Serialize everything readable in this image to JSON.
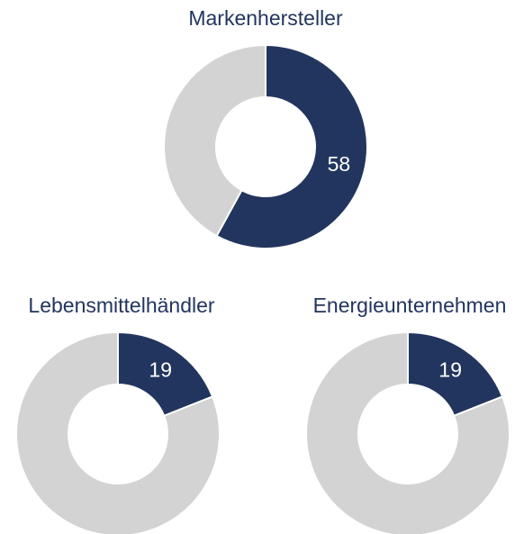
{
  "chart_data": [
    {
      "type": "pie",
      "title": "Markenhersteller",
      "categories": [
        "Markenhersteller",
        null
      ],
      "values": [
        58,
        42
      ],
      "value_labels": [
        "58",
        null
      ],
      "colors": [
        "#22355e",
        "#d3d3d3"
      ],
      "donut": true
    },
    {
      "type": "pie",
      "title": "Lebensmittelhändler",
      "categories": [
        "Lebensmittelhändler",
        null
      ],
      "values": [
        19,
        81
      ],
      "value_labels": [
        "19",
        null
      ],
      "colors": [
        "#22355e",
        "#d3d3d3"
      ],
      "donut": true
    },
    {
      "type": "pie",
      "title": "Energieunternehmen",
      "categories": [
        "Energieunternehmen",
        null
      ],
      "values": [
        19,
        81
      ],
      "value_labels": [
        "19",
        null
      ],
      "colors": [
        "#22355e",
        "#d3d3d3"
      ],
      "donut": true
    }
  ]
}
